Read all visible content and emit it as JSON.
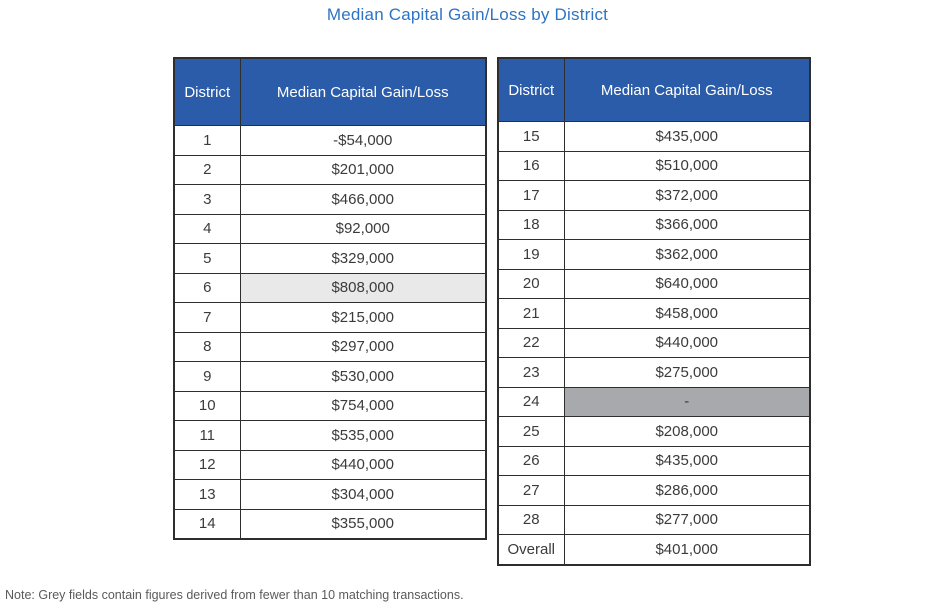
{
  "title": "Median Capital Gain/Loss by District",
  "note": "Note: Grey fields contain figures derived from fewer than 10 matching transactions.",
  "columns": {
    "district": "District",
    "value": "Median Capital Gain/Loss"
  },
  "colors": {
    "header_bg": "#2a5ca9",
    "header_text": "#ffffff",
    "title_text": "#2e74c4",
    "border": "#2e2e2e",
    "cell_text": "#3b3b3b",
    "shade_light": "#e9e9e9",
    "shade_dark": "#a8a9ac",
    "note_text": "#5a5a5a"
  },
  "tables": [
    {
      "rows": [
        {
          "district": "1",
          "value": "-$54,000",
          "shade": "none"
        },
        {
          "district": "2",
          "value": "$201,000",
          "shade": "none"
        },
        {
          "district": "3",
          "value": "$466,000",
          "shade": "none"
        },
        {
          "district": "4",
          "value": "$92,000",
          "shade": "none"
        },
        {
          "district": "5",
          "value": "$329,000",
          "shade": "none"
        },
        {
          "district": "6",
          "value": "$808,000",
          "shade": "light"
        },
        {
          "district": "7",
          "value": "$215,000",
          "shade": "none"
        },
        {
          "district": "8",
          "value": "$297,000",
          "shade": "none"
        },
        {
          "district": "9",
          "value": "$530,000",
          "shade": "none"
        },
        {
          "district": "10",
          "value": "$754,000",
          "shade": "none"
        },
        {
          "district": "11",
          "value": "$535,000",
          "shade": "none"
        },
        {
          "district": "12",
          "value": "$440,000",
          "shade": "none"
        },
        {
          "district": "13",
          "value": "$304,000",
          "shade": "none"
        },
        {
          "district": "14",
          "value": "$355,000",
          "shade": "none"
        }
      ]
    },
    {
      "rows": [
        {
          "district": "15",
          "value": "$435,000",
          "shade": "none"
        },
        {
          "district": "16",
          "value": "$510,000",
          "shade": "none"
        },
        {
          "district": "17",
          "value": "$372,000",
          "shade": "none"
        },
        {
          "district": "18",
          "value": "$366,000",
          "shade": "none"
        },
        {
          "district": "19",
          "value": "$362,000",
          "shade": "none"
        },
        {
          "district": "20",
          "value": "$640,000",
          "shade": "none"
        },
        {
          "district": "21",
          "value": "$458,000",
          "shade": "none"
        },
        {
          "district": "22",
          "value": "$440,000",
          "shade": "none"
        },
        {
          "district": "23",
          "value": "$275,000",
          "shade": "none"
        },
        {
          "district": "24",
          "value": "-",
          "shade": "dark"
        },
        {
          "district": "25",
          "value": "$208,000",
          "shade": "none"
        },
        {
          "district": "26",
          "value": "$435,000",
          "shade": "none"
        },
        {
          "district": "27",
          "value": "$286,000",
          "shade": "none"
        },
        {
          "district": "28",
          "value": "$277,000",
          "shade": "none"
        },
        {
          "district": "Overall",
          "value": "$401,000",
          "shade": "none"
        }
      ]
    }
  ]
}
